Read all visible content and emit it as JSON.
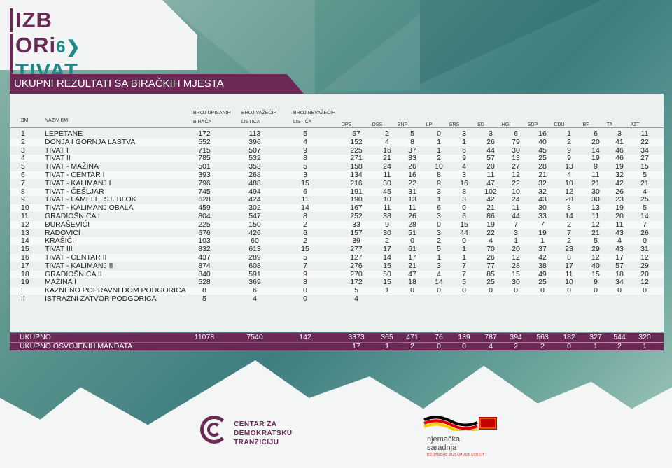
{
  "logo": {
    "line1": "IZB",
    "line2": "ORi",
    "six": "6",
    "arrow": "❯",
    "place": "TIVAT"
  },
  "title": "UKUPNI REZULTATI SA BIRAČKIH MJESTA",
  "headers": {
    "bm": "BM",
    "naziv": "NAZIV BM",
    "upisanih": [
      "BROJ UPISANIH",
      "BIRAČA"
    ],
    "vazecih": [
      "BROJ VAŽEĆIH",
      "LISTIĆA"
    ],
    "nevazecih": [
      "BROJ NEVAŽEĆIH",
      "LISTIĆA"
    ],
    "parties": [
      "DPS",
      "DSS",
      "SNP",
      "LP",
      "SRS",
      "SD",
      "HGI",
      "SDP",
      "CDU",
      "BF",
      "TA",
      "AZT"
    ]
  },
  "rows": [
    [
      "1",
      "LEPETANE",
      "172",
      "113",
      "5",
      "57",
      "2",
      "5",
      "0",
      "3",
      "3",
      "6",
      "16",
      "1",
      "6",
      "3",
      "11"
    ],
    [
      "2",
      "DONJA I GORNJA LASTVA",
      "552",
      "396",
      "4",
      "152",
      "4",
      "8",
      "1",
      "1",
      "26",
      "79",
      "40",
      "2",
      "20",
      "41",
      "22"
    ],
    [
      "3",
      "TIVAT I",
      "715",
      "507",
      "9",
      "225",
      "16",
      "37",
      "1",
      "6",
      "44",
      "30",
      "45",
      "9",
      "14",
      "46",
      "34"
    ],
    [
      "4",
      "TIVAT II",
      "785",
      "532",
      "8",
      "271",
      "21",
      "33",
      "2",
      "9",
      "57",
      "13",
      "25",
      "9",
      "19",
      "46",
      "27"
    ],
    [
      "5",
      "TIVAT - MAŽINA",
      "501",
      "353",
      "5",
      "158",
      "24",
      "26",
      "10",
      "4",
      "20",
      "27",
      "28",
      "13",
      "9",
      "19",
      "15"
    ],
    [
      "6",
      "TIVAT - CENTAR I",
      "393",
      "268",
      "3",
      "134",
      "11",
      "16",
      "8",
      "3",
      "11",
      "12",
      "21",
      "4",
      "11",
      "32",
      "5"
    ],
    [
      "7",
      "TIVAT - KALIMANJ I",
      "796",
      "488",
      "15",
      "216",
      "30",
      "22",
      "9",
      "16",
      "47",
      "22",
      "32",
      "10",
      "21",
      "42",
      "21"
    ],
    [
      "8",
      "TIVAT - ČEŠLJAR",
      "745",
      "494",
      "6",
      "191",
      "45",
      "31",
      "3",
      "8",
      "102",
      "10",
      "32",
      "12",
      "30",
      "26",
      "4"
    ],
    [
      "9",
      "TIVAT - LAMELE, ST. BLOK",
      "628",
      "424",
      "11",
      "190",
      "10",
      "13",
      "1",
      "3",
      "42",
      "24",
      "43",
      "20",
      "30",
      "23",
      "25"
    ],
    [
      "10",
      "TIVAT - KALIMANJ OBALA",
      "459",
      "302",
      "14",
      "167",
      "11",
      "11",
      "6",
      "0",
      "21",
      "11",
      "30",
      "8",
      "13",
      "19",
      "5"
    ],
    [
      "11",
      "GRADIOŠNICA I",
      "804",
      "547",
      "8",
      "252",
      "38",
      "26",
      "3",
      "6",
      "86",
      "44",
      "33",
      "14",
      "11",
      "20",
      "14"
    ],
    [
      "12",
      "ĐURAŠEVIĆI",
      "225",
      "150",
      "2",
      "33",
      "9",
      "28",
      "0",
      "15",
      "19",
      "7",
      "7",
      "2",
      "12",
      "11",
      "7"
    ],
    [
      "13",
      "RADOVIĆI",
      "676",
      "426",
      "6",
      "157",
      "30",
      "51",
      "3",
      "44",
      "22",
      "3",
      "19",
      "7",
      "21",
      "43",
      "26"
    ],
    [
      "14",
      "KRAŠIĆI",
      "103",
      "60",
      "2",
      "39",
      "2",
      "0",
      "2",
      "0",
      "4",
      "1",
      "1",
      "2",
      "5",
      "4",
      "0"
    ],
    [
      "15",
      "TIVAT III",
      "832",
      "613",
      "15",
      "277",
      "17",
      "61",
      "5",
      "1",
      "70",
      "20",
      "37",
      "23",
      "29",
      "43",
      "31"
    ],
    [
      "16",
      "TIVAT - CENTAR II",
      "437",
      "289",
      "5",
      "127",
      "14",
      "17",
      "1",
      "1",
      "26",
      "12",
      "42",
      "8",
      "12",
      "17",
      "12"
    ],
    [
      "17",
      "TIVAT - KALIMANJ II",
      "874",
      "608",
      "7",
      "276",
      "15",
      "21",
      "3",
      "7",
      "77",
      "28",
      "38",
      "17",
      "40",
      "57",
      "29"
    ],
    [
      "18",
      "GRADIOŠNICA II",
      "840",
      "591",
      "9",
      "270",
      "50",
      "47",
      "4",
      "7",
      "85",
      "15",
      "49",
      "11",
      "15",
      "18",
      "20"
    ],
    [
      "19",
      "MAŽINA I",
      "528",
      "369",
      "8",
      "172",
      "15",
      "18",
      "14",
      "5",
      "25",
      "30",
      "25",
      "10",
      "9",
      "34",
      "12"
    ],
    [
      "I",
      "KAZNENO POPRAVNI DOM PODGORICA",
      "8",
      "6",
      "0",
      "5",
      "1",
      "0",
      "0",
      "0",
      "0",
      "0",
      "0",
      "0",
      "0",
      "0",
      "0"
    ],
    [
      "II",
      "ISTRAŽNI ZATVOR PODGORICA",
      "5",
      "4",
      "0",
      "4",
      "",
      "",
      "",
      "",
      "",
      "",
      "",
      "",
      "",
      "",
      ""
    ]
  ],
  "totals": {
    "label": "UKUPNO",
    "values": [
      "11078",
      "7540",
      "142",
      "3373",
      "365",
      "471",
      "76",
      "139",
      "787",
      "394",
      "563",
      "182",
      "327",
      "544",
      "320"
    ]
  },
  "mandates": {
    "label": "UKUPNO OSVOJENIH MANDATA",
    "values": [
      "17",
      "1",
      "2",
      "0",
      "0",
      "4",
      "2",
      "2",
      "0",
      "1",
      "2",
      "1"
    ]
  },
  "sponsors": {
    "cdt": [
      "CENTAR ZA",
      "DEMOKRATSKU",
      "TRANZICIJU"
    ],
    "german": [
      "njemačka",
      "saradnja"
    ],
    "german_sub": "DEUTSCHE ZUSAMMENARBEIT"
  },
  "colors": {
    "accent": "#6b2a55",
    "teal": "#1f8a8a"
  }
}
